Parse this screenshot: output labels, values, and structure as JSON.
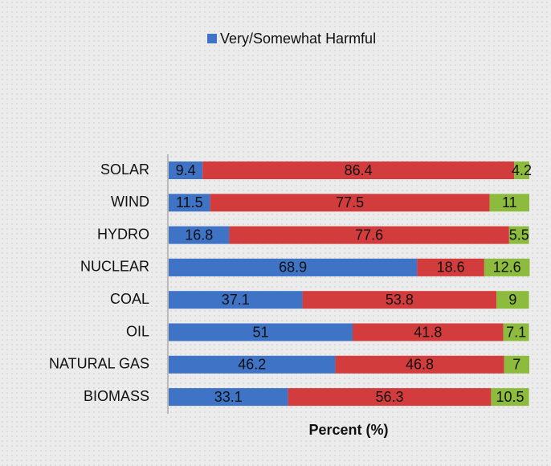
{
  "chart_data": {
    "type": "stacked-barh",
    "categories": [
      "SOLAR",
      "WIND",
      "HYDRO",
      "NUCLEAR",
      "COAL",
      "OIL",
      "NATURAL GAS",
      "BIOMASS"
    ],
    "series": [
      {
        "name": "Very/Somewhat Harmful",
        "color": "#3f73c6",
        "values": [
          9.4,
          11.5,
          16.8,
          68.9,
          37.1,
          51,
          46.2,
          33.1
        ]
      },
      {
        "color": "#d23c3c",
        "values": [
          86.4,
          77.5,
          77.6,
          18.6,
          53.8,
          41.8,
          46.8,
          56.3
        ]
      },
      {
        "color": "#8dbb3e",
        "values": [
          4.2,
          11,
          5.5,
          12.6,
          9,
          7.1,
          7,
          10.5
        ]
      }
    ],
    "xlabel": "Percent (%)",
    "xlim": [
      0,
      100
    ],
    "legend": "top"
  }
}
